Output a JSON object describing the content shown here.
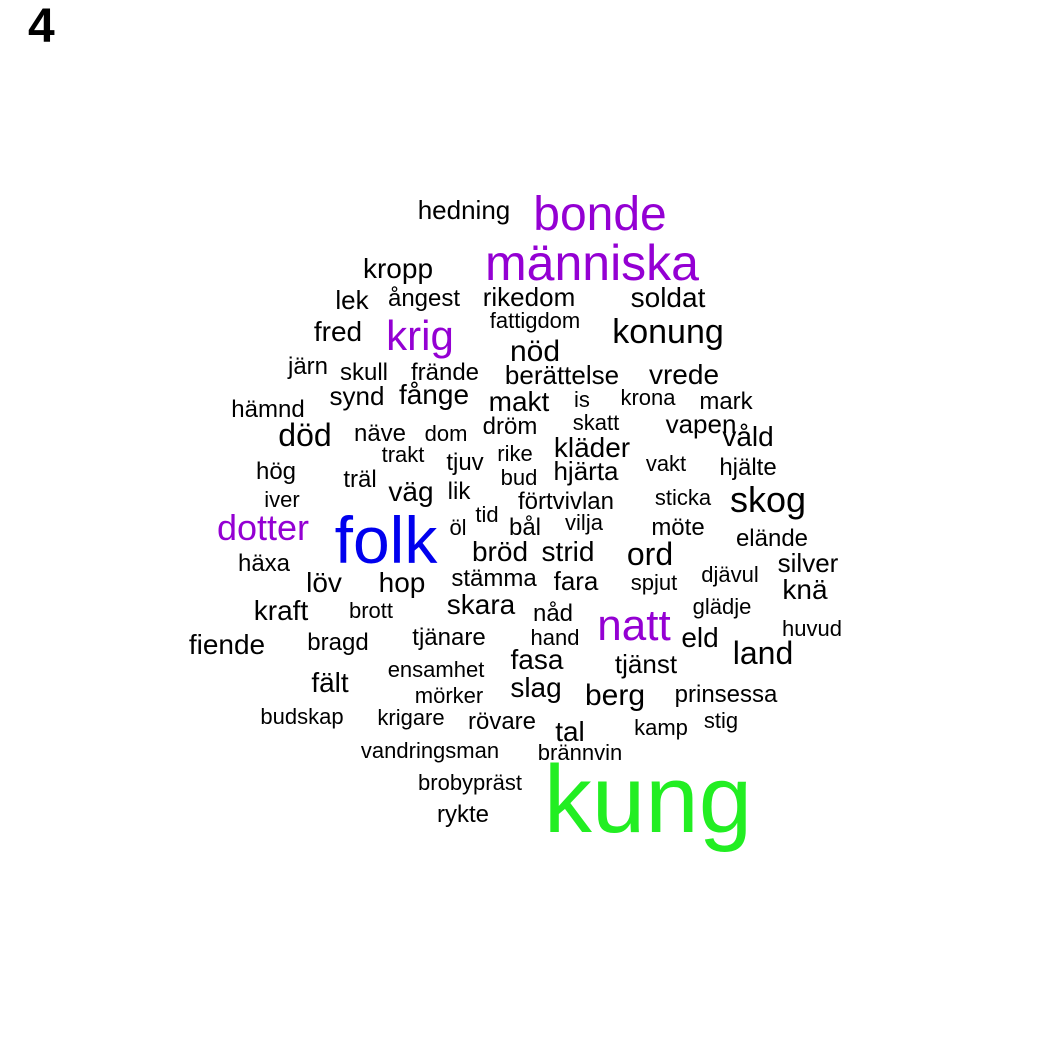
{
  "panel_label": "4",
  "colors": {
    "black": "#000000",
    "purple": "#9400d3",
    "blue": "#0000ee",
    "green": "#22ee22"
  },
  "words": [
    {
      "text": "kung",
      "color": "green"
    },
    {
      "text": "folk",
      "color": "blue"
    },
    {
      "text": "människa",
      "color": "purple"
    },
    {
      "text": "bonde",
      "color": "purple"
    },
    {
      "text": "natt",
      "color": "purple"
    },
    {
      "text": "krig",
      "color": "purple"
    },
    {
      "text": "dotter",
      "color": "purple"
    },
    {
      "text": "hedning",
      "color": "black"
    },
    {
      "text": "kropp",
      "color": "black"
    },
    {
      "text": "lek",
      "color": "black"
    },
    {
      "text": "ångest",
      "color": "black"
    },
    {
      "text": "rikedom",
      "color": "black"
    },
    {
      "text": "soldat",
      "color": "black"
    },
    {
      "text": "fattigdom",
      "color": "black"
    },
    {
      "text": "fred",
      "color": "black"
    },
    {
      "text": "konung",
      "color": "black"
    },
    {
      "text": "nöd",
      "color": "black"
    },
    {
      "text": "järn",
      "color": "black"
    },
    {
      "text": "skull",
      "color": "black"
    },
    {
      "text": "frände",
      "color": "black"
    },
    {
      "text": "berättelse",
      "color": "black"
    },
    {
      "text": "vrede",
      "color": "black"
    },
    {
      "text": "synd",
      "color": "black"
    },
    {
      "text": "fånge",
      "color": "black"
    },
    {
      "text": "makt",
      "color": "black"
    },
    {
      "text": "is",
      "color": "black"
    },
    {
      "text": "krona",
      "color": "black"
    },
    {
      "text": "mark",
      "color": "black"
    },
    {
      "text": "hämnd",
      "color": "black"
    },
    {
      "text": "skatt",
      "color": "black"
    },
    {
      "text": "död",
      "color": "black"
    },
    {
      "text": "näve",
      "color": "black"
    },
    {
      "text": "dom",
      "color": "black"
    },
    {
      "text": "dröm",
      "color": "black"
    },
    {
      "text": "vapen",
      "color": "black"
    },
    {
      "text": "våld",
      "color": "black"
    },
    {
      "text": "kläder",
      "color": "black"
    },
    {
      "text": "trakt",
      "color": "black"
    },
    {
      "text": "rike",
      "color": "black"
    },
    {
      "text": "hög",
      "color": "black"
    },
    {
      "text": "tjuv",
      "color": "black"
    },
    {
      "text": "vakt",
      "color": "black"
    },
    {
      "text": "hjälte",
      "color": "black"
    },
    {
      "text": "träl",
      "color": "black"
    },
    {
      "text": "bud",
      "color": "black"
    },
    {
      "text": "hjärta",
      "color": "black"
    },
    {
      "text": "väg",
      "color": "black"
    },
    {
      "text": "lik",
      "color": "black"
    },
    {
      "text": "iver",
      "color": "black"
    },
    {
      "text": "förtvivlan",
      "color": "black"
    },
    {
      "text": "sticka",
      "color": "black"
    },
    {
      "text": "skog",
      "color": "black"
    },
    {
      "text": "tid",
      "color": "black"
    },
    {
      "text": "vilja",
      "color": "black"
    },
    {
      "text": "öl",
      "color": "black"
    },
    {
      "text": "bål",
      "color": "black"
    },
    {
      "text": "möte",
      "color": "black"
    },
    {
      "text": "elände",
      "color": "black"
    },
    {
      "text": "bröd",
      "color": "black"
    },
    {
      "text": "strid",
      "color": "black"
    },
    {
      "text": "ord",
      "color": "black"
    },
    {
      "text": "häxa",
      "color": "black"
    },
    {
      "text": "silver",
      "color": "black"
    },
    {
      "text": "djävul",
      "color": "black"
    },
    {
      "text": "löv",
      "color": "black"
    },
    {
      "text": "hop",
      "color": "black"
    },
    {
      "text": "stämma",
      "color": "black"
    },
    {
      "text": "fara",
      "color": "black"
    },
    {
      "text": "spjut",
      "color": "black"
    },
    {
      "text": "knä",
      "color": "black"
    },
    {
      "text": "kraft",
      "color": "black"
    },
    {
      "text": "skara",
      "color": "black"
    },
    {
      "text": "glädje",
      "color": "black"
    },
    {
      "text": "brott",
      "color": "black"
    },
    {
      "text": "nåd",
      "color": "black"
    },
    {
      "text": "huvud",
      "color": "black"
    },
    {
      "text": "fiende",
      "color": "black"
    },
    {
      "text": "bragd",
      "color": "black"
    },
    {
      "text": "tjänare",
      "color": "black"
    },
    {
      "text": "hand",
      "color": "black"
    },
    {
      "text": "eld",
      "color": "black"
    },
    {
      "text": "land",
      "color": "black"
    },
    {
      "text": "fasa",
      "color": "black"
    },
    {
      "text": "ensamhet",
      "color": "black"
    },
    {
      "text": "tjänst",
      "color": "black"
    },
    {
      "text": "fält",
      "color": "black"
    },
    {
      "text": "slag",
      "color": "black"
    },
    {
      "text": "berg",
      "color": "black"
    },
    {
      "text": "prinsessa",
      "color": "black"
    },
    {
      "text": "mörker",
      "color": "black"
    },
    {
      "text": "budskap",
      "color": "black"
    },
    {
      "text": "krigare",
      "color": "black"
    },
    {
      "text": "rövare",
      "color": "black"
    },
    {
      "text": "stig",
      "color": "black"
    },
    {
      "text": "kamp",
      "color": "black"
    },
    {
      "text": "tal",
      "color": "black"
    },
    {
      "text": "vandringsman",
      "color": "black"
    },
    {
      "text": "brännvin",
      "color": "black"
    },
    {
      "text": "brobypräst",
      "color": "black"
    },
    {
      "text": "rykte",
      "color": "black"
    }
  ]
}
